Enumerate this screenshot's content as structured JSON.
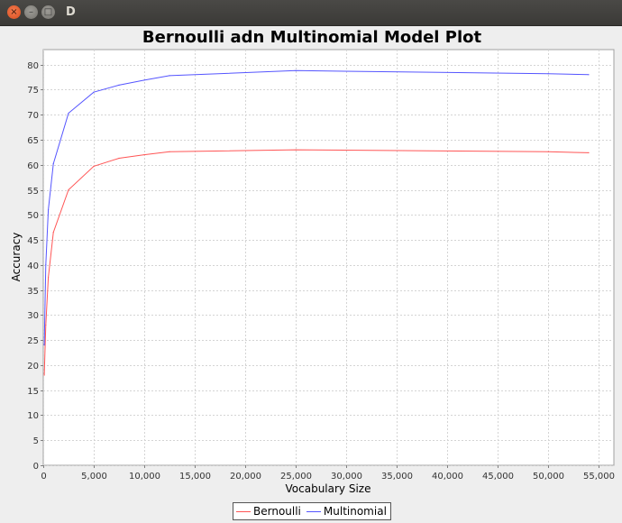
{
  "window": {
    "title": "D",
    "close_glyph": "×",
    "min_glyph": "–",
    "max_glyph": "□"
  },
  "colors": {
    "bernoulli": "#ff5555",
    "multinomial": "#5555ff",
    "grid": "#d4d4d4"
  },
  "chart_data": {
    "type": "line",
    "title": "Bernoulli adn Multinomial Model Plot",
    "xlabel": "Vocabulary Size",
    "ylabel": "Accuracy",
    "xlim": [
      0,
      56500
    ],
    "ylim": [
      0,
      83
    ],
    "xticks": [
      0,
      5000,
      10000,
      15000,
      20000,
      25000,
      30000,
      35000,
      40000,
      45000,
      50000,
      55000
    ],
    "xtick_labels": [
      "0",
      "5,000",
      "10,000",
      "15,000",
      "20,000",
      "25,000",
      "30,000",
      "35,000",
      "40,000",
      "45,000",
      "50,000",
      "55,000"
    ],
    "yticks": [
      0,
      5,
      10,
      15,
      20,
      25,
      30,
      35,
      40,
      45,
      50,
      55,
      60,
      65,
      70,
      75,
      80
    ],
    "ytick_labels": [
      "0",
      "5",
      "10",
      "15",
      "20",
      "25",
      "30",
      "35",
      "40",
      "45",
      "50",
      "55",
      "60",
      "65",
      "70",
      "75",
      "80"
    ],
    "grid": true,
    "legend_position": "bottom",
    "series": [
      {
        "name": "Bernoulli",
        "color": "#ff5555",
        "x": [
          100,
          250,
          500,
          1000,
          2500,
          5000,
          7500,
          10000,
          12500,
          25000,
          50000,
          54000
        ],
        "y": [
          18,
          28,
          37.5,
          46.5,
          55,
          59.7,
          61.3,
          62,
          62.6,
          63,
          62.6,
          62.4
        ]
      },
      {
        "name": "Multinomial",
        "color": "#5555ff",
        "x": [
          100,
          250,
          500,
          1000,
          2500,
          5000,
          7500,
          10000,
          12500,
          25000,
          50000,
          54000
        ],
        "y": [
          24,
          40,
          51,
          60.2,
          70.3,
          74.5,
          75.9,
          76.9,
          77.8,
          78.8,
          78.2,
          78
        ]
      }
    ]
  }
}
